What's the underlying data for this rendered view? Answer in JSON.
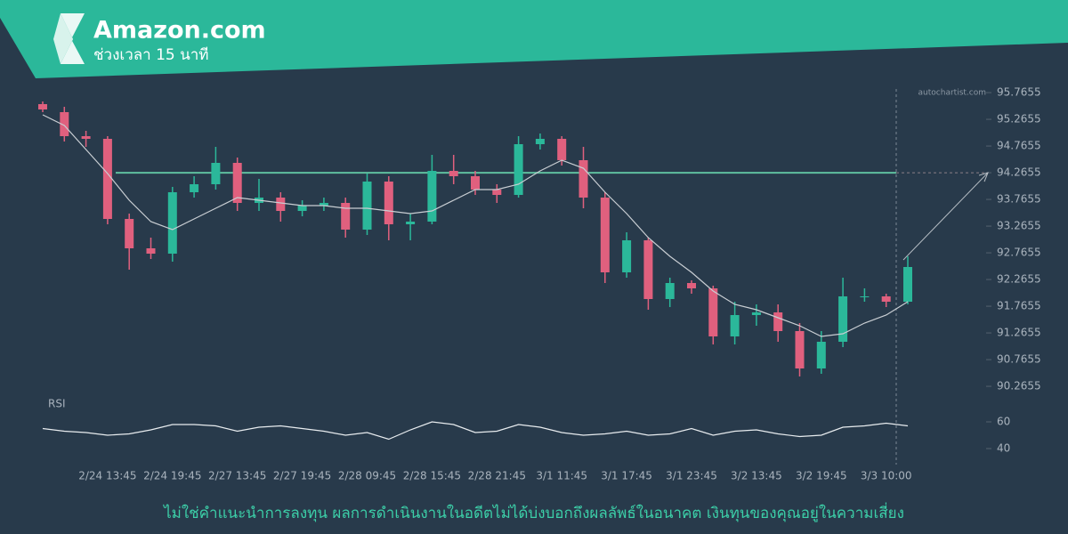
{
  "header": {
    "title": "Amazon.com",
    "subtitle": "ช่วงเวลา 15 นาที"
  },
  "watermark": "autochartist.com",
  "footer": "ไม่ใช่คำแนะนำการลงทุน ผลการดำเนินงานในอดีตไม่ได้บ่งบอกถึงผลลัพธ์ในอนาคต เงินทุนของคุณอยู่ในความเสี่ยง",
  "chart_data": {
    "type": "candlestick",
    "categories": [
      null,
      null,
      null,
      "2/24 13:45",
      null,
      null,
      "2/24 19:45",
      null,
      null,
      "2/27 13:45",
      null,
      null,
      "2/27 19:45",
      null,
      null,
      "2/28 09:45",
      null,
      null,
      "2/28 15:45",
      null,
      null,
      "2/28 21:45",
      null,
      null,
      "3/1 11:45",
      null,
      null,
      "3/1 17:45",
      null,
      null,
      "3/1 23:45",
      null,
      null,
      "3/2 13:45",
      null,
      null,
      "3/2 19:45",
      null,
      null,
      "3/3 10:00",
      null
    ],
    "open": [
      95.55,
      95.4,
      94.95,
      94.9,
      93.4,
      92.85,
      92.75,
      93.9,
      94.05,
      94.45,
      93.7,
      93.8,
      93.55,
      93.65,
      93.7,
      93.2,
      94.1,
      93.3,
      93.35,
      94.3,
      94.2,
      93.95,
      93.85,
      94.8,
      94.9,
      94.5,
      93.8,
      92.4,
      93.0,
      91.9,
      92.2,
      92.1,
      91.2,
      91.6,
      91.65,
      91.3,
      90.6,
      91.1,
      91.95,
      91.95,
      91.85
    ],
    "high": [
      95.6,
      95.5,
      95.05,
      94.95,
      93.5,
      93.05,
      94.0,
      94.2,
      94.75,
      94.55,
      94.15,
      93.9,
      93.75,
      93.8,
      93.8,
      94.25,
      94.2,
      93.5,
      94.6,
      94.6,
      94.3,
      94.05,
      94.95,
      95.0,
      94.95,
      94.75,
      93.9,
      93.15,
      93.05,
      92.3,
      92.25,
      92.15,
      91.85,
      91.8,
      91.8,
      91.45,
      91.3,
      92.3,
      92.1,
      92.0,
      92.7
    ],
    "low": [
      95.4,
      94.85,
      94.75,
      93.3,
      92.45,
      92.65,
      92.6,
      93.8,
      93.95,
      93.55,
      93.55,
      93.35,
      93.45,
      93.55,
      93.05,
      93.1,
      93.0,
      93.0,
      93.3,
      94.05,
      93.85,
      93.7,
      93.8,
      94.7,
      94.4,
      93.6,
      92.2,
      92.3,
      91.7,
      91.75,
      92.0,
      91.05,
      91.05,
      91.4,
      91.1,
      90.45,
      90.5,
      91.0,
      91.85,
      91.75,
      91.8
    ],
    "close": [
      95.45,
      94.95,
      94.9,
      93.4,
      92.85,
      92.75,
      93.9,
      94.05,
      94.45,
      93.7,
      93.8,
      93.55,
      93.65,
      93.7,
      93.2,
      94.1,
      93.3,
      93.35,
      94.3,
      94.2,
      93.95,
      93.85,
      94.8,
      94.9,
      94.5,
      93.8,
      92.4,
      93.0,
      91.9,
      92.2,
      92.1,
      91.2,
      91.6,
      91.65,
      91.3,
      90.6,
      91.1,
      91.95,
      91.95,
      91.85,
      92.5
    ],
    "moving_average": [
      95.35,
      95.15,
      94.7,
      94.25,
      93.75,
      93.35,
      93.2,
      93.4,
      93.6,
      93.8,
      93.75,
      93.7,
      93.65,
      93.65,
      93.6,
      93.6,
      93.55,
      93.5,
      93.55,
      93.75,
      93.95,
      93.95,
      94.05,
      94.3,
      94.5,
      94.35,
      93.9,
      93.5,
      93.05,
      92.7,
      92.4,
      92.05,
      91.8,
      91.7,
      91.55,
      91.4,
      91.2,
      91.25,
      91.45,
      91.6,
      91.85
    ],
    "up_color": "#2bb89a",
    "down_color": "#e0607e",
    "ma_color": "#c9ced3",
    "resistance": 94.2655,
    "resistance_color": "#5fbf9f",
    "ylim": [
      90,
      96
    ],
    "yticks": [
      95.7655,
      95.2655,
      94.7655,
      94.2655,
      93.7655,
      93.2655,
      92.7655,
      92.2655,
      91.7655,
      91.2655,
      90.7655,
      90.2655
    ],
    "rsi_label": "RSI",
    "rsi": [
      55,
      53,
      52,
      50,
      51,
      54,
      58,
      58,
      57,
      53,
      56,
      57,
      55,
      53,
      50,
      52,
      47,
      54,
      60,
      58,
      52,
      53,
      58,
      56,
      52,
      50,
      51,
      53,
      50,
      51,
      55,
      50,
      53,
      54,
      51,
      49,
      50,
      56,
      57,
      59,
      57
    ],
    "rsi_lim": [
      30,
      70
    ],
    "rsi_ticks": [
      60,
      40
    ]
  }
}
